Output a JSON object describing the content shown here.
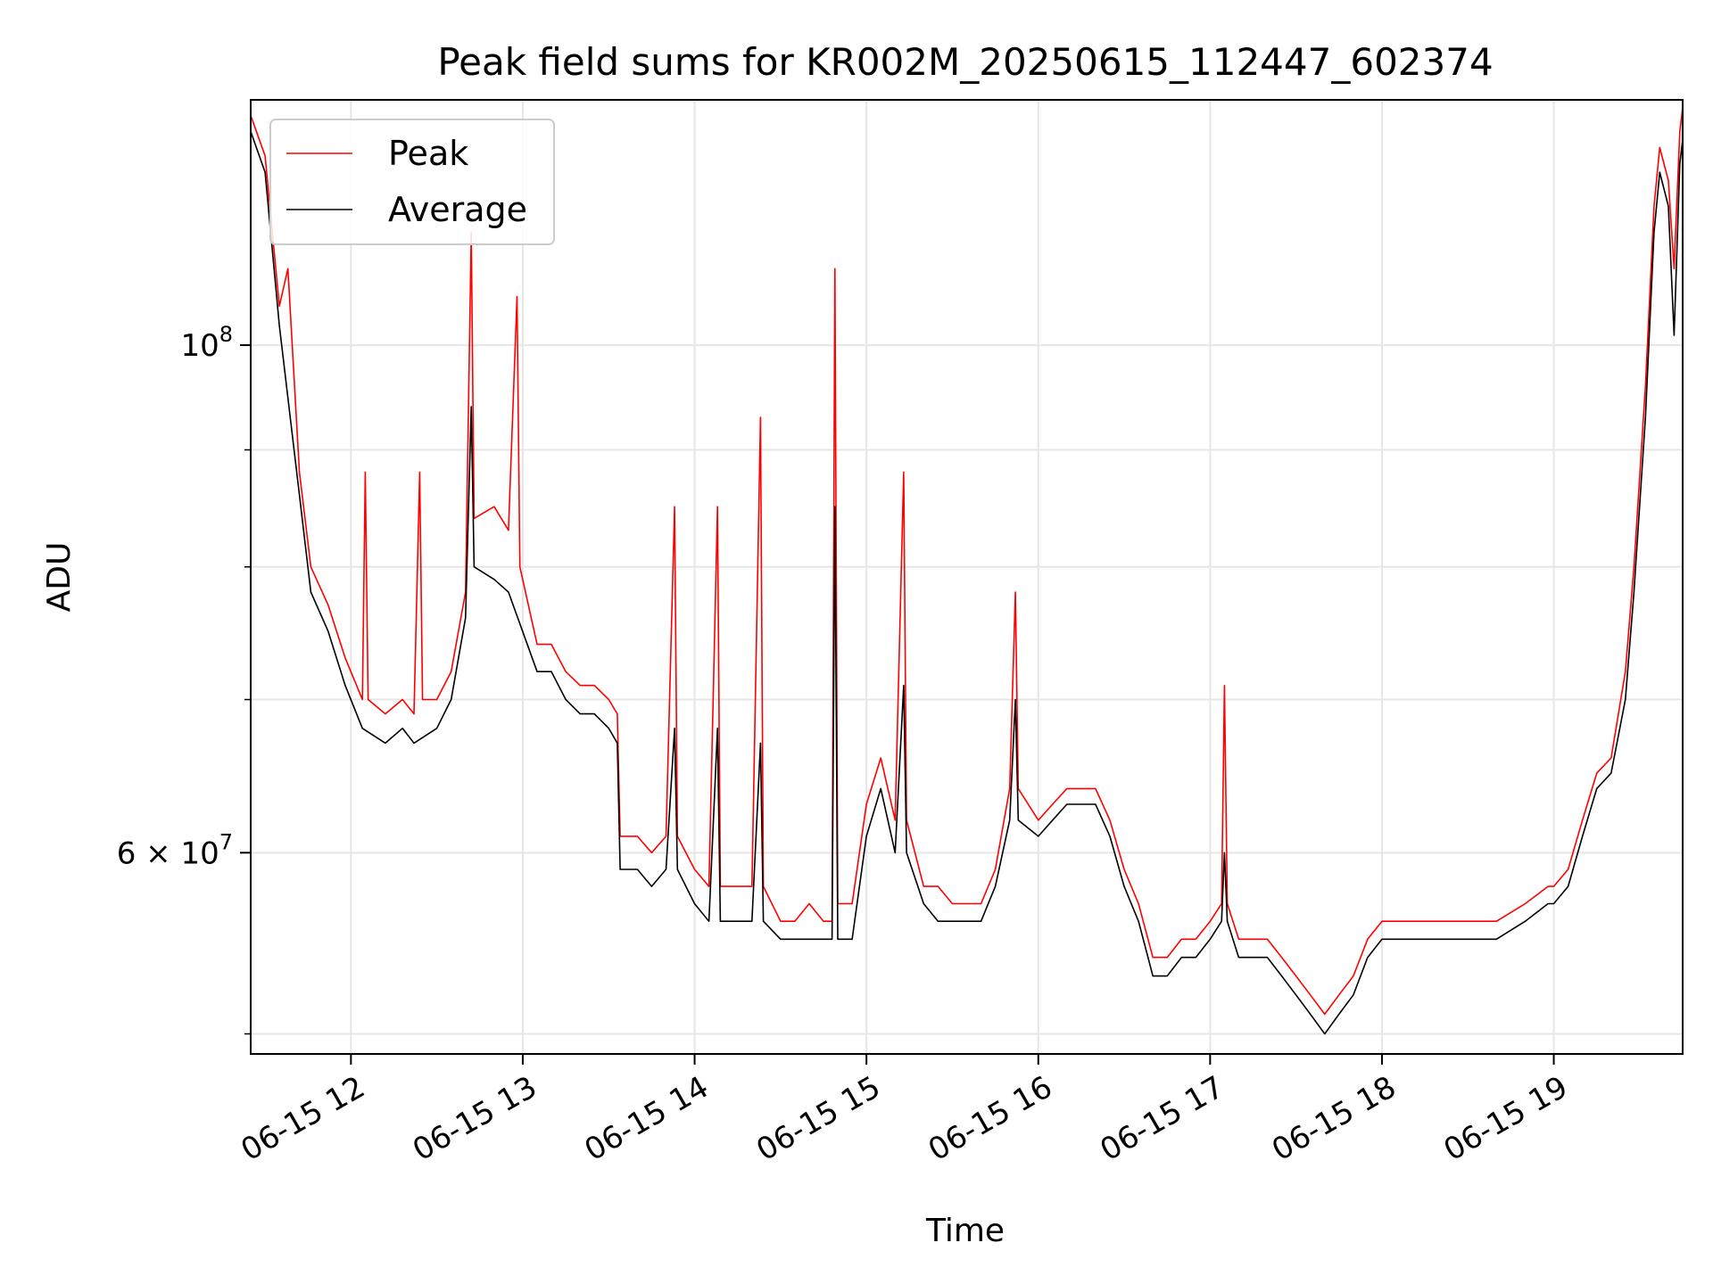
{
  "chart_data": {
    "type": "line",
    "title": "Peak field sums for KR002M_20250615_112447_602374",
    "xlabel": "Time",
    "ylabel": "ADU",
    "yscale": "log",
    "ylim": [
      49000000,
      128000000
    ],
    "xlim": [
      "2025-06-15 11:25",
      "2025-06-15 19:45"
    ],
    "grid": true,
    "legend_position": "top-left",
    "x_ticks": [
      {
        "t": "2025-06-15 12:00",
        "label": "06-15 12"
      },
      {
        "t": "2025-06-15 13:00",
        "label": "06-15 13"
      },
      {
        "t": "2025-06-15 14:00",
        "label": "06-15 14"
      },
      {
        "t": "2025-06-15 15:00",
        "label": "06-15 15"
      },
      {
        "t": "2025-06-15 16:00",
        "label": "06-15 16"
      },
      {
        "t": "2025-06-15 17:00",
        "label": "06-15 17"
      },
      {
        "t": "2025-06-15 18:00",
        "label": "06-15 18"
      },
      {
        "t": "2025-06-15 19:00",
        "label": "06-15 19"
      }
    ],
    "y_ticks_major": [
      {
        "value": 60000000,
        "label_base": "6 × 10",
        "label_exp": "7"
      },
      {
        "value": 100000000,
        "label_base": "10",
        "label_exp": "8"
      }
    ],
    "y_ticks_minor": [
      50000000,
      70000000,
      80000000,
      90000000
    ],
    "series": [
      {
        "name": "Peak",
        "color": "#ff0000",
        "points": [
          [
            "2025-06-15 11:25",
            126000000
          ],
          [
            "2025-06-15 11:30",
            121000000
          ],
          [
            "2025-06-15 11:35",
            104000000
          ],
          [
            "2025-06-15 11:38",
            108000000
          ],
          [
            "2025-06-15 11:42",
            88000000
          ],
          [
            "2025-06-15 11:46",
            80000000
          ],
          [
            "2025-06-15 11:52",
            77000000
          ],
          [
            "2025-06-15 11:58",
            73000000
          ],
          [
            "2025-06-15 12:04",
            70000000
          ],
          [
            "2025-06-15 12:05",
            88000000
          ],
          [
            "2025-06-15 12:06",
            70000000
          ],
          [
            "2025-06-15 12:12",
            69000000
          ],
          [
            "2025-06-15 12:18",
            70000000
          ],
          [
            "2025-06-15 12:22",
            69000000
          ],
          [
            "2025-06-15 12:24",
            88000000
          ],
          [
            "2025-06-15 12:25",
            70000000
          ],
          [
            "2025-06-15 12:30",
            70000000
          ],
          [
            "2025-06-15 12:35",
            72000000
          ],
          [
            "2025-06-15 12:40",
            78000000
          ],
          [
            "2025-06-15 12:42",
            112000000
          ],
          [
            "2025-06-15 12:43",
            84000000
          ],
          [
            "2025-06-15 12:50",
            85000000
          ],
          [
            "2025-06-15 12:55",
            83000000
          ],
          [
            "2025-06-15 12:58",
            105000000
          ],
          [
            "2025-06-15 12:59",
            80000000
          ],
          [
            "2025-06-15 13:05",
            74000000
          ],
          [
            "2025-06-15 13:10",
            74000000
          ],
          [
            "2025-06-15 13:15",
            72000000
          ],
          [
            "2025-06-15 13:20",
            71000000
          ],
          [
            "2025-06-15 13:25",
            71000000
          ],
          [
            "2025-06-15 13:30",
            70000000
          ],
          [
            "2025-06-15 13:33",
            69000000
          ],
          [
            "2025-06-15 13:34",
            61000000
          ],
          [
            "2025-06-15 13:40",
            61000000
          ],
          [
            "2025-06-15 13:45",
            60000000
          ],
          [
            "2025-06-15 13:50",
            61000000
          ],
          [
            "2025-06-15 13:53",
            85000000
          ],
          [
            "2025-06-15 13:54",
            61000000
          ],
          [
            "2025-06-15 14:00",
            59000000
          ],
          [
            "2025-06-15 14:05",
            58000000
          ],
          [
            "2025-06-15 14:08",
            85000000
          ],
          [
            "2025-06-15 14:09",
            58000000
          ],
          [
            "2025-06-15 14:15",
            58000000
          ],
          [
            "2025-06-15 14:20",
            58000000
          ],
          [
            "2025-06-15 14:23",
            93000000
          ],
          [
            "2025-06-15 14:24",
            58000000
          ],
          [
            "2025-06-15 14:30",
            56000000
          ],
          [
            "2025-06-15 14:35",
            56000000
          ],
          [
            "2025-06-15 14:40",
            57000000
          ],
          [
            "2025-06-15 14:45",
            56000000
          ],
          [
            "2025-06-15 14:48",
            56000000
          ],
          [
            "2025-06-15 14:49",
            108000000
          ],
          [
            "2025-06-15 14:50",
            57000000
          ],
          [
            "2025-06-15 14:55",
            57000000
          ],
          [
            "2025-06-15 15:00",
            63000000
          ],
          [
            "2025-06-15 15:05",
            66000000
          ],
          [
            "2025-06-15 15:10",
            62000000
          ],
          [
            "2025-06-15 15:13",
            88000000
          ],
          [
            "2025-06-15 15:14",
            62000000
          ],
          [
            "2025-06-15 15:20",
            58000000
          ],
          [
            "2025-06-15 15:25",
            58000000
          ],
          [
            "2025-06-15 15:30",
            57000000
          ],
          [
            "2025-06-15 15:35",
            57000000
          ],
          [
            "2025-06-15 15:40",
            57000000
          ],
          [
            "2025-06-15 15:45",
            59000000
          ],
          [
            "2025-06-15 15:50",
            64000000
          ],
          [
            "2025-06-15 15:52",
            78000000
          ],
          [
            "2025-06-15 15:53",
            64000000
          ],
          [
            "2025-06-15 16:00",
            62000000
          ],
          [
            "2025-06-15 16:05",
            63000000
          ],
          [
            "2025-06-15 16:10",
            64000000
          ],
          [
            "2025-06-15 16:15",
            64000000
          ],
          [
            "2025-06-15 16:20",
            64000000
          ],
          [
            "2025-06-15 16:25",
            62000000
          ],
          [
            "2025-06-15 16:30",
            59000000
          ],
          [
            "2025-06-15 16:35",
            57000000
          ],
          [
            "2025-06-15 16:40",
            54000000
          ],
          [
            "2025-06-15 16:45",
            54000000
          ],
          [
            "2025-06-15 16:50",
            55000000
          ],
          [
            "2025-06-15 16:55",
            55000000
          ],
          [
            "2025-06-15 17:00",
            56000000
          ],
          [
            "2025-06-15 17:04",
            57000000
          ],
          [
            "2025-06-15 17:05",
            71000000
          ],
          [
            "2025-06-15 17:06",
            57000000
          ],
          [
            "2025-06-15 17:10",
            55000000
          ],
          [
            "2025-06-15 17:15",
            55000000
          ],
          [
            "2025-06-15 17:20",
            55000000
          ],
          [
            "2025-06-15 17:25",
            54000000
          ],
          [
            "2025-06-15 17:30",
            53000000
          ],
          [
            "2025-06-15 17:35",
            52000000
          ],
          [
            "2025-06-15 17:40",
            51000000
          ],
          [
            "2025-06-15 17:45",
            52000000
          ],
          [
            "2025-06-15 17:50",
            53000000
          ],
          [
            "2025-06-15 17:55",
            55000000
          ],
          [
            "2025-06-15 18:00",
            56000000
          ],
          [
            "2025-06-15 18:10",
            56000000
          ],
          [
            "2025-06-15 18:20",
            56000000
          ],
          [
            "2025-06-15 18:30",
            56000000
          ],
          [
            "2025-06-15 18:40",
            56000000
          ],
          [
            "2025-06-15 18:50",
            57000000
          ],
          [
            "2025-06-15 18:58",
            58000000
          ],
          [
            "2025-06-15 19:00",
            58000000
          ],
          [
            "2025-06-15 19:05",
            59000000
          ],
          [
            "2025-06-15 19:10",
            62000000
          ],
          [
            "2025-06-15 19:15",
            65000000
          ],
          [
            "2025-06-15 19:20",
            66000000
          ],
          [
            "2025-06-15 19:25",
            72000000
          ],
          [
            "2025-06-15 19:28",
            80000000
          ],
          [
            "2025-06-15 19:32",
            96000000
          ],
          [
            "2025-06-15 19:35",
            115000000
          ],
          [
            "2025-06-15 19:37",
            122000000
          ],
          [
            "2025-06-15 19:40",
            118000000
          ],
          [
            "2025-06-15 19:42",
            108000000
          ],
          [
            "2025-06-15 19:44",
            124000000
          ],
          [
            "2025-06-15 19:45",
            127000000
          ]
        ]
      },
      {
        "name": "Average",
        "color": "#000000",
        "points": [
          [
            "2025-06-15 11:25",
            124000000
          ],
          [
            "2025-06-15 11:30",
            119000000
          ],
          [
            "2025-06-15 11:35",
            102000000
          ],
          [
            "2025-06-15 11:42",
            86000000
          ],
          [
            "2025-06-15 11:46",
            78000000
          ],
          [
            "2025-06-15 11:52",
            75000000
          ],
          [
            "2025-06-15 11:58",
            71000000
          ],
          [
            "2025-06-15 12:04",
            68000000
          ],
          [
            "2025-06-15 12:12",
            67000000
          ],
          [
            "2025-06-15 12:18",
            68000000
          ],
          [
            "2025-06-15 12:22",
            67000000
          ],
          [
            "2025-06-15 12:30",
            68000000
          ],
          [
            "2025-06-15 12:35",
            70000000
          ],
          [
            "2025-06-15 12:40",
            76000000
          ],
          [
            "2025-06-15 12:42",
            94000000
          ],
          [
            "2025-06-15 12:43",
            80000000
          ],
          [
            "2025-06-15 12:50",
            79000000
          ],
          [
            "2025-06-15 12:55",
            78000000
          ],
          [
            "2025-06-15 13:05",
            72000000
          ],
          [
            "2025-06-15 13:10",
            72000000
          ],
          [
            "2025-06-15 13:15",
            70000000
          ],
          [
            "2025-06-15 13:20",
            69000000
          ],
          [
            "2025-06-15 13:25",
            69000000
          ],
          [
            "2025-06-15 13:30",
            68000000
          ],
          [
            "2025-06-15 13:33",
            67000000
          ],
          [
            "2025-06-15 13:34",
            59000000
          ],
          [
            "2025-06-15 13:40",
            59000000
          ],
          [
            "2025-06-15 13:45",
            58000000
          ],
          [
            "2025-06-15 13:50",
            59000000
          ],
          [
            "2025-06-15 13:53",
            68000000
          ],
          [
            "2025-06-15 13:54",
            59000000
          ],
          [
            "2025-06-15 14:00",
            57000000
          ],
          [
            "2025-06-15 14:05",
            56000000
          ],
          [
            "2025-06-15 14:08",
            68000000
          ],
          [
            "2025-06-15 14:09",
            56000000
          ],
          [
            "2025-06-15 14:15",
            56000000
          ],
          [
            "2025-06-15 14:20",
            56000000
          ],
          [
            "2025-06-15 14:23",
            67000000
          ],
          [
            "2025-06-15 14:24",
            56000000
          ],
          [
            "2025-06-15 14:30",
            55000000
          ],
          [
            "2025-06-15 14:35",
            55000000
          ],
          [
            "2025-06-15 14:40",
            55000000
          ],
          [
            "2025-06-15 14:45",
            55000000
          ],
          [
            "2025-06-15 14:48",
            55000000
          ],
          [
            "2025-06-15 14:49",
            85000000
          ],
          [
            "2025-06-15 14:50",
            55000000
          ],
          [
            "2025-06-15 14:55",
            55000000
          ],
          [
            "2025-06-15 15:00",
            61000000
          ],
          [
            "2025-06-15 15:05",
            64000000
          ],
          [
            "2025-06-15 15:10",
            60000000
          ],
          [
            "2025-06-15 15:13",
            71000000
          ],
          [
            "2025-06-15 15:14",
            60000000
          ],
          [
            "2025-06-15 15:20",
            57000000
          ],
          [
            "2025-06-15 15:25",
            56000000
          ],
          [
            "2025-06-15 15:30",
            56000000
          ],
          [
            "2025-06-15 15:35",
            56000000
          ],
          [
            "2025-06-15 15:40",
            56000000
          ],
          [
            "2025-06-15 15:45",
            58000000
          ],
          [
            "2025-06-15 15:50",
            62000000
          ],
          [
            "2025-06-15 15:52",
            70000000
          ],
          [
            "2025-06-15 15:53",
            62000000
          ],
          [
            "2025-06-15 16:00",
            61000000
          ],
          [
            "2025-06-15 16:05",
            62000000
          ],
          [
            "2025-06-15 16:10",
            63000000
          ],
          [
            "2025-06-15 16:15",
            63000000
          ],
          [
            "2025-06-15 16:20",
            63000000
          ],
          [
            "2025-06-15 16:25",
            61000000
          ],
          [
            "2025-06-15 16:30",
            58000000
          ],
          [
            "2025-06-15 16:35",
            56000000
          ],
          [
            "2025-06-15 16:40",
            53000000
          ],
          [
            "2025-06-15 16:45",
            53000000
          ],
          [
            "2025-06-15 16:50",
            54000000
          ],
          [
            "2025-06-15 16:55",
            54000000
          ],
          [
            "2025-06-15 17:00",
            55000000
          ],
          [
            "2025-06-15 17:04",
            56000000
          ],
          [
            "2025-06-15 17:05",
            60000000
          ],
          [
            "2025-06-15 17:06",
            56000000
          ],
          [
            "2025-06-15 17:10",
            54000000
          ],
          [
            "2025-06-15 17:15",
            54000000
          ],
          [
            "2025-06-15 17:20",
            54000000
          ],
          [
            "2025-06-15 17:25",
            53000000
          ],
          [
            "2025-06-15 17:30",
            52000000
          ],
          [
            "2025-06-15 17:35",
            51000000
          ],
          [
            "2025-06-15 17:40",
            50000000
          ],
          [
            "2025-06-15 17:45",
            51000000
          ],
          [
            "2025-06-15 17:50",
            52000000
          ],
          [
            "2025-06-15 17:55",
            54000000
          ],
          [
            "2025-06-15 18:00",
            55000000
          ],
          [
            "2025-06-15 18:10",
            55000000
          ],
          [
            "2025-06-15 18:20",
            55000000
          ],
          [
            "2025-06-15 18:30",
            55000000
          ],
          [
            "2025-06-15 18:40",
            55000000
          ],
          [
            "2025-06-15 18:50",
            56000000
          ],
          [
            "2025-06-15 18:58",
            57000000
          ],
          [
            "2025-06-15 19:00",
            57000000
          ],
          [
            "2025-06-15 19:05",
            58000000
          ],
          [
            "2025-06-15 19:10",
            61000000
          ],
          [
            "2025-06-15 19:15",
            64000000
          ],
          [
            "2025-06-15 19:20",
            65000000
          ],
          [
            "2025-06-15 19:25",
            70000000
          ],
          [
            "2025-06-15 19:28",
            78000000
          ],
          [
            "2025-06-15 19:32",
            93000000
          ],
          [
            "2025-06-15 19:35",
            112000000
          ],
          [
            "2025-06-15 19:37",
            119000000
          ],
          [
            "2025-06-15 19:40",
            115000000
          ],
          [
            "2025-06-15 19:42",
            101000000
          ],
          [
            "2025-06-15 19:44",
            120000000
          ],
          [
            "2025-06-15 19:45",
            123000000
          ]
        ]
      }
    ]
  }
}
